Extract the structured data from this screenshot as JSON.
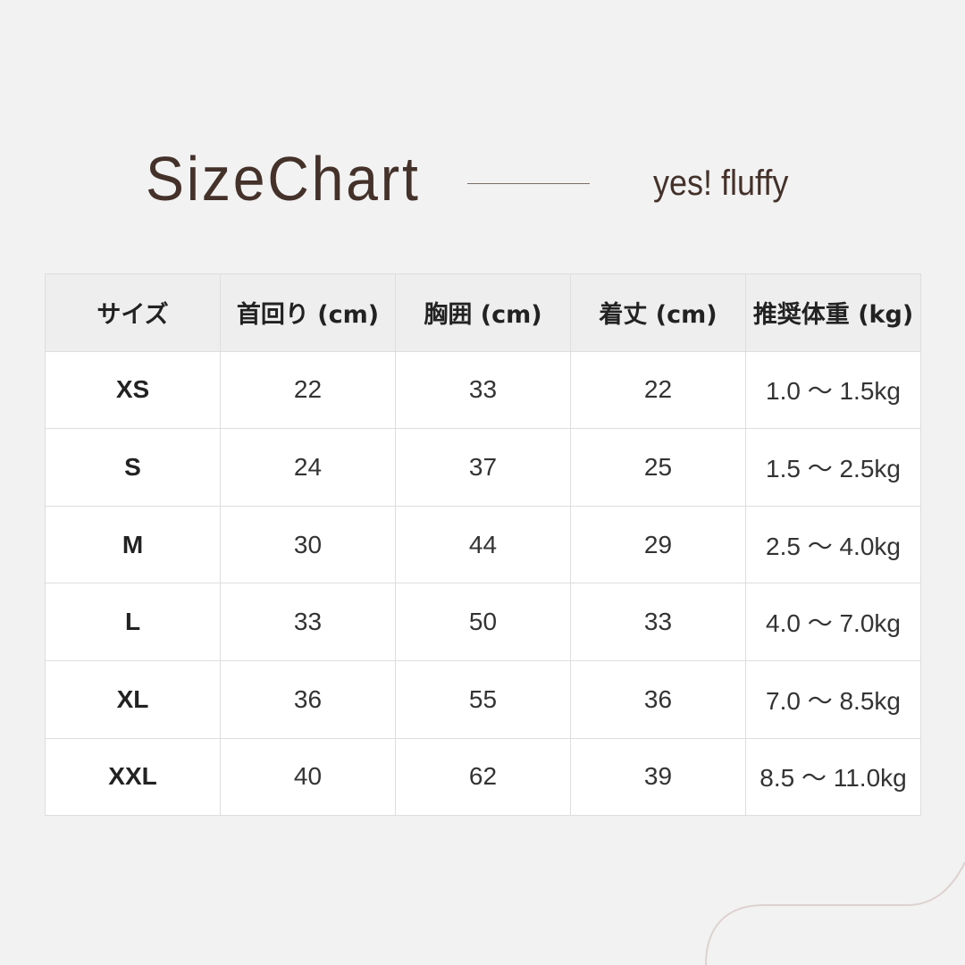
{
  "header": {
    "title": "SizeChart",
    "brand": "yes! fluffy"
  },
  "table": {
    "columns": [
      "サイズ",
      "首回り (cm)",
      "胸囲 (cm)",
      "着丈 (cm)",
      "推奨体重 (kg)"
    ],
    "rows": [
      [
        "XS",
        "22",
        "33",
        "22",
        "1.0 〜 1.5kg"
      ],
      [
        "S",
        "24",
        "37",
        "25",
        "1.5 〜 2.5kg"
      ],
      [
        "M",
        "30",
        "44",
        "29",
        "2.5 〜 4.0kg"
      ],
      [
        "L",
        "33",
        "50",
        "33",
        "4.0 〜 7.0kg"
      ],
      [
        "XL",
        "36",
        "55",
        "36",
        "7.0 〜 8.5kg"
      ],
      [
        "XXL",
        "40",
        "62",
        "39",
        "8.5 〜 11.0kg"
      ]
    ]
  },
  "colors": {
    "background": "#f3f2f2",
    "text_brown": "#43312a",
    "header_bg": "#eeeeee",
    "border": "#dedede"
  }
}
